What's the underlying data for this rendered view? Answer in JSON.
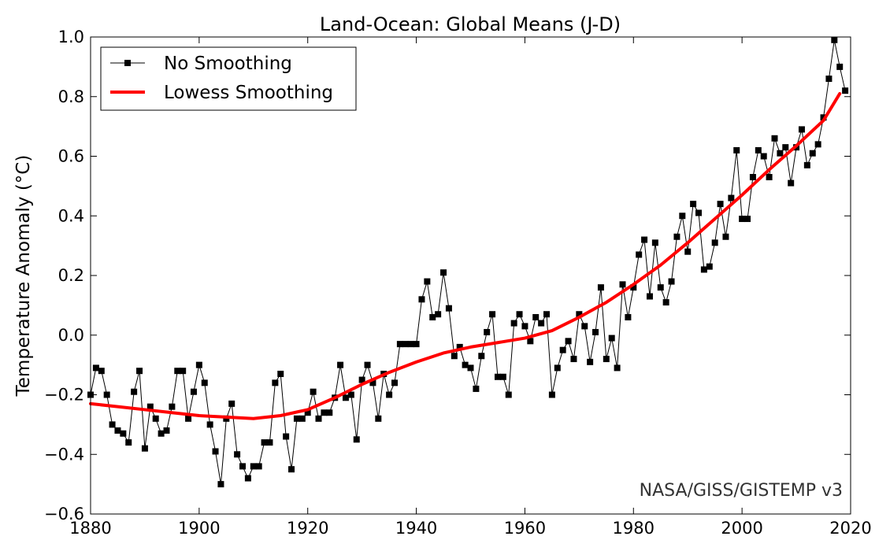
{
  "chart_data": {
    "type": "line",
    "title": "Land-Ocean: Global Means (J-D)",
    "xlabel": "",
    "ylabel": "Temperature Anomaly (°C)",
    "xlim": [
      1880,
      2020
    ],
    "ylim": [
      -0.6,
      1.0
    ],
    "x_ticks": [
      1880,
      1900,
      1920,
      1940,
      1960,
      1980,
      2000,
      2020
    ],
    "x_tick_labels": [
      "1880",
      "1900",
      "1920",
      "1940",
      "1960",
      "1980",
      "2000",
      "2020"
    ],
    "y_ticks": [
      -0.6,
      -0.4,
      -0.2,
      0.0,
      0.2,
      0.4,
      0.6,
      0.8,
      1.0
    ],
    "y_tick_labels": [
      "−0.6",
      "−0.4",
      "−0.2",
      "0.0",
      "0.2",
      "0.4",
      "0.6",
      "0.8",
      "1.0"
    ],
    "grid": false,
    "legend_position": "top-left",
    "credit": "NASA/GISS/GISTEMP v3",
    "series": [
      {
        "name": "No Smoothing",
        "color": "#000000",
        "marker": "square",
        "x_start": 1880,
        "values": [
          -0.2,
          -0.11,
          -0.12,
          -0.2,
          -0.3,
          -0.32,
          -0.33,
          -0.36,
          -0.19,
          -0.12,
          -0.38,
          -0.24,
          -0.28,
          -0.33,
          -0.32,
          -0.24,
          -0.12,
          -0.12,
          -0.28,
          -0.19,
          -0.1,
          -0.16,
          -0.3,
          -0.39,
          -0.5,
          -0.28,
          -0.23,
          -0.4,
          -0.44,
          -0.48,
          -0.44,
          -0.44,
          -0.36,
          -0.36,
          -0.16,
          -0.13,
          -0.34,
          -0.45,
          -0.28,
          -0.28,
          -0.26,
          -0.19,
          -0.28,
          -0.26,
          -0.26,
          -0.21,
          -0.1,
          -0.21,
          -0.2,
          -0.35,
          -0.15,
          -0.1,
          -0.16,
          -0.28,
          -0.13,
          -0.2,
          -0.16,
          -0.03,
          -0.03,
          -0.03,
          -0.03,
          0.12,
          0.18,
          0.06,
          0.07,
          0.21,
          0.09,
          -0.07,
          -0.04,
          -0.1,
          -0.11,
          -0.18,
          -0.07,
          0.01,
          0.07,
          -0.14,
          -0.14,
          -0.2,
          0.04,
          0.07,
          0.03,
          -0.02,
          0.06,
          0.04,
          0.07,
          -0.2,
          -0.11,
          -0.05,
          -0.02,
          -0.08,
          0.07,
          0.03,
          -0.09,
          0.01,
          0.16,
          -0.08,
          -0.01,
          -0.11,
          0.17,
          0.06,
          0.16,
          0.27,
          0.32,
          0.13,
          0.31,
          0.16,
          0.11,
          0.18,
          0.33,
          0.4,
          0.28,
          0.44,
          0.41,
          0.22,
          0.23,
          0.31,
          0.44,
          0.33,
          0.46,
          0.62,
          0.39,
          0.39,
          0.53,
          0.62,
          0.6,
          0.53,
          0.66,
          0.61,
          0.63,
          0.51,
          0.63,
          0.69,
          0.57,
          0.61,
          0.64,
          0.73,
          0.86,
          0.99,
          0.9,
          0.82
        ]
      },
      {
        "name": "Lowess Smoothing",
        "color": "#ff0000",
        "marker": "none",
        "x": [
          1880,
          1885,
          1890,
          1895,
          1900,
          1905,
          1910,
          1915,
          1920,
          1925,
          1930,
          1935,
          1940,
          1945,
          1950,
          1955,
          1960,
          1965,
          1970,
          1975,
          1980,
          1985,
          1990,
          1995,
          2000,
          2005,
          2010,
          2015,
          2018
        ],
        "values": [
          -0.23,
          -0.24,
          -0.25,
          -0.26,
          -0.27,
          -0.275,
          -0.28,
          -0.27,
          -0.25,
          -0.21,
          -0.165,
          -0.125,
          -0.09,
          -0.06,
          -0.04,
          -0.025,
          -0.01,
          0.015,
          0.06,
          0.11,
          0.17,
          0.235,
          0.31,
          0.39,
          0.47,
          0.555,
          0.635,
          0.72,
          0.81
        ]
      }
    ]
  }
}
